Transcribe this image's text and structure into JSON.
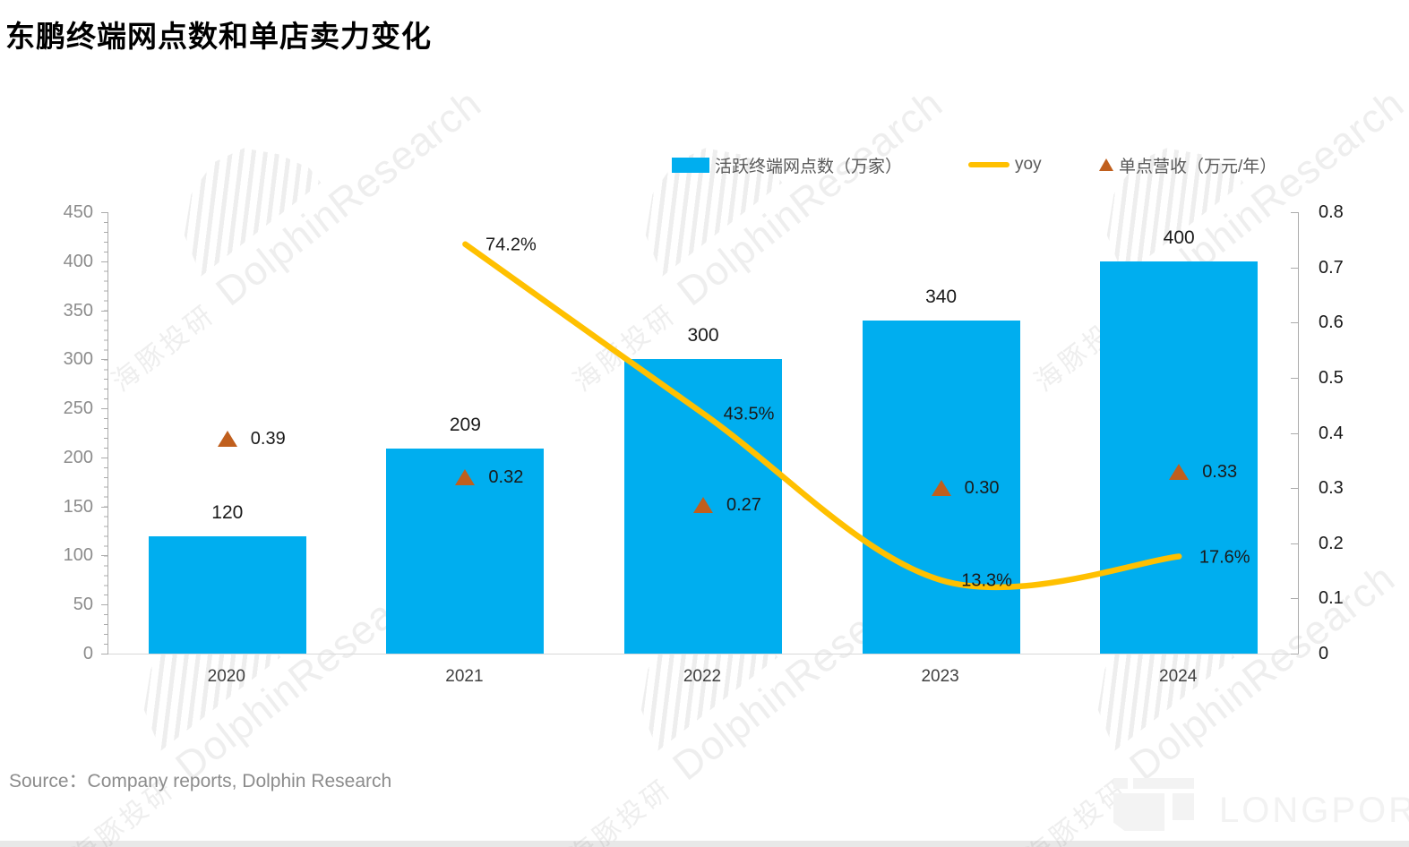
{
  "title": "东鹏终端网点数和单店卖力变化",
  "source": "Source：Company reports, Dolphin Research",
  "watermark": {
    "cn": "海豚投研",
    "en": "DolphinResearch"
  },
  "logo": {
    "text": "LONGPORT"
  },
  "legend": {
    "items": [
      {
        "label": "活跃终端网点数（万家）",
        "marker": "bar",
        "color": "#00AEEF"
      },
      {
        "label": "yoy",
        "marker": "line",
        "color": "#FFC000"
      },
      {
        "label": "单点营收（万元/年）",
        "marker": "triangle",
        "color": "#C05F1D"
      }
    ]
  },
  "chart_data": {
    "type": "bar",
    "categories": [
      "2020",
      "2021",
      "2022",
      "2023",
      "2024"
    ],
    "series": [
      {
        "name": "活跃终端网点数（万家）",
        "type": "bar",
        "axis": "left",
        "color": "#00AEEF",
        "values": [
          120,
          209,
          300,
          340,
          400
        ],
        "labels": [
          "120",
          "209",
          "300",
          "340",
          "400"
        ]
      },
      {
        "name": "yoy",
        "type": "line",
        "axis": "right",
        "color": "#FFC000",
        "values": [
          null,
          0.742,
          0.435,
          0.133,
          0.176
        ],
        "labels": [
          "",
          "74.2%",
          "43.5%",
          "13.3%",
          "17.6%"
        ]
      },
      {
        "name": "单点营收（万元/年）",
        "type": "scatter",
        "marker": "triangle",
        "axis": "right",
        "color": "#C05F1D",
        "values": [
          0.39,
          0.32,
          0.27,
          0.3,
          0.33
        ],
        "labels": [
          "0.39",
          "0.32",
          "0.27",
          "0.30",
          "0.33"
        ]
      }
    ],
    "left_axis": {
      "min": 0,
      "max": 450,
      "step": 50,
      "tick_labels": [
        "0",
        "50",
        "100",
        "150",
        "200",
        "250",
        "300",
        "350",
        "400",
        "450"
      ]
    },
    "right_axis": {
      "min": 0,
      "max": 0.8,
      "step": 0.1,
      "tick_labels": [
        "0",
        "0.1",
        "0.2",
        "0.3",
        "0.4",
        "0.5",
        "0.6",
        "0.7",
        "0.8"
      ]
    },
    "grid": false,
    "legend_position": "top-right"
  }
}
